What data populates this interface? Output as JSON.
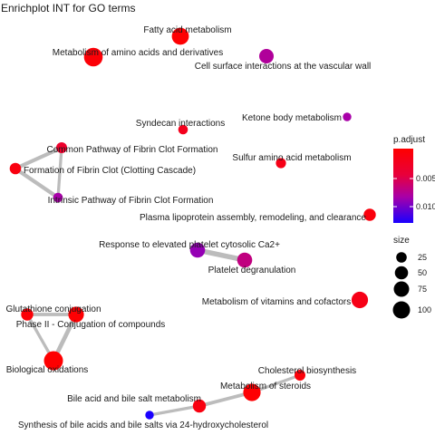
{
  "chart_data": {
    "type": "network",
    "title": "Enrichplot INT for GO terms",
    "nodes": [
      {
        "id": "fatty",
        "label": "Fatty acid metabolism",
        "size": 75,
        "p_adjust": 0.0002
      },
      {
        "id": "aa",
        "label": "Metabolism of amino acids and derivatives",
        "size": 95,
        "p_adjust": 0.0005
      },
      {
        "id": "cellsurf",
        "label": "Cell surface interactions at the vascular wall",
        "size": 50,
        "p_adjust": 0.0075
      },
      {
        "id": "syndecan",
        "label": "Syndecan interactions",
        "size": 15,
        "p_adjust": 0.002
      },
      {
        "id": "ketone",
        "label": "Ketone body metabolism",
        "size": 10,
        "p_adjust": 0.008
      },
      {
        "id": "common",
        "label": "Common Pathway of Fibrin Clot Formation",
        "size": 22,
        "p_adjust": 0.003
      },
      {
        "id": "clot",
        "label": "Formation of Fibrin Clot (Clotting Cascade)",
        "size": 25,
        "p_adjust": 0.001
      },
      {
        "id": "intrinsic",
        "label": "Intrinsic Pathway of Fibrin Clot Formation",
        "size": 15,
        "p_adjust": 0.008
      },
      {
        "id": "sulfur",
        "label": "Sulfur amino acid metabolism",
        "size": 18,
        "p_adjust": 0.0015
      },
      {
        "id": "plasma",
        "label": "Plasma lipoprotein assembly, remodeling, and clearance",
        "size": 30,
        "p_adjust": 0.0008
      },
      {
        "id": "response",
        "label": "Response to elevated platelet cytosolic Ca2+",
        "size": 55,
        "p_adjust": 0.0085
      },
      {
        "id": "degran",
        "label": "Platelet degranulation",
        "size": 55,
        "p_adjust": 0.0065
      },
      {
        "id": "vitamins",
        "label": "Metabolism of vitamins and cofactors",
        "size": 70,
        "p_adjust": 0.0015
      },
      {
        "id": "gluta",
        "label": "Glutathione conjugation",
        "size": 30,
        "p_adjust": 0.0005
      },
      {
        "id": "phase2",
        "label": "Phase II - Conjugation of compounds",
        "size": 60,
        "p_adjust": 0.0002
      },
      {
        "id": "bio",
        "label": "Biological oxidations",
        "size": 100,
        "p_adjust": 0.0001
      },
      {
        "id": "chol",
        "label": "Cholesterol biosynthesis",
        "size": 22,
        "p_adjust": 0.0006
      },
      {
        "id": "steroids",
        "label": "Metabolism of steroids",
        "size": 80,
        "p_adjust": 0.0002
      },
      {
        "id": "bile",
        "label": "Bile acid and bile salt metabolism",
        "size": 38,
        "p_adjust": 0.001
      },
      {
        "id": "bilesyn",
        "label": "Synthesis of bile acids and bile salts via 24-hydroxycholesterol",
        "size": 10,
        "p_adjust": 0.0115
      }
    ],
    "edges": [
      {
        "source": "clot",
        "target": "common",
        "weight": 0.6
      },
      {
        "source": "clot",
        "target": "intrinsic",
        "weight": 0.6
      },
      {
        "source": "common",
        "target": "intrinsic",
        "weight": 0.4
      },
      {
        "source": "response",
        "target": "degran",
        "weight": 0.9
      },
      {
        "source": "gluta",
        "target": "phase2",
        "weight": 0.5
      },
      {
        "source": "gluta",
        "target": "bio",
        "weight": 0.4
      },
      {
        "source": "phase2",
        "target": "bio",
        "weight": 0.7
      },
      {
        "source": "bilesyn",
        "target": "bile",
        "weight": 0.4
      },
      {
        "source": "bile",
        "target": "steroids",
        "weight": 0.5
      },
      {
        "source": "steroids",
        "target": "chol",
        "weight": 0.4
      }
    ],
    "legend": {
      "color_title": "p.adjust",
      "color_ticks": [
        "0.005",
        "0.010"
      ],
      "color_low": "#ff0000",
      "color_high": "#0000ff",
      "size_title": "size",
      "size_values": [
        25,
        50,
        75,
        100
      ]
    }
  }
}
